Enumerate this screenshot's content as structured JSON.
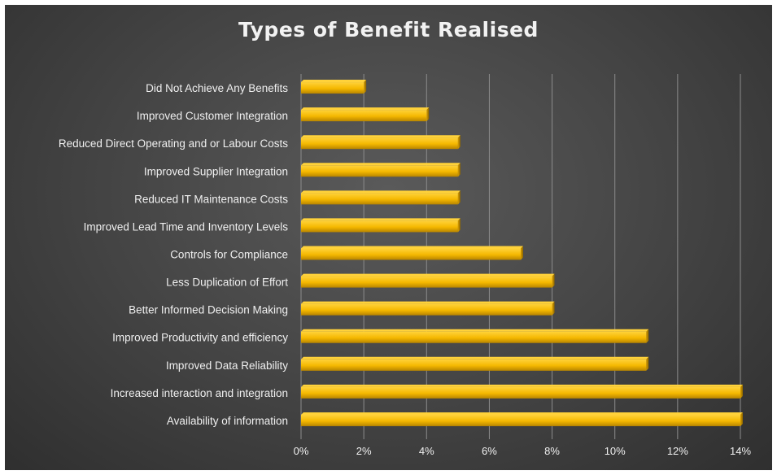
{
  "chart_data": {
    "type": "bar",
    "orientation": "horizontal",
    "title": "Types of Benefit Realised",
    "categories": [
      "Did Not Achieve Any Benefits",
      "Improved Customer Integration",
      "Reduced Direct Operating and or Labour Costs",
      "Improved Supplier Integration",
      "Reduced IT Maintenance Costs",
      "Improved Lead Time and Inventory Levels",
      "Controls for Compliance",
      "Less Duplication of Effort",
      "Better Informed Decision Making",
      "Improved Productivity and efficiency",
      "Improved Data Reliability",
      "Increased interaction and integration",
      "Availability of information"
    ],
    "values": [
      2,
      4,
      5,
      5,
      5,
      5,
      7,
      8,
      8,
      11,
      11,
      14,
      14
    ],
    "value_unit": "%",
    "xlim": [
      0,
      14
    ],
    "xticks": [
      "0%",
      "2%",
      "4%",
      "6%",
      "8%",
      "10%",
      "12%",
      "14%"
    ],
    "grid": "vertical",
    "legend": "none",
    "colors": {
      "bar": "#f5b800",
      "bar_highlight": "#ffd23a",
      "bar_shadow": "#b88500",
      "background": "#434343",
      "text": "#f0f0f0",
      "grid": "#8c8c8c"
    }
  }
}
